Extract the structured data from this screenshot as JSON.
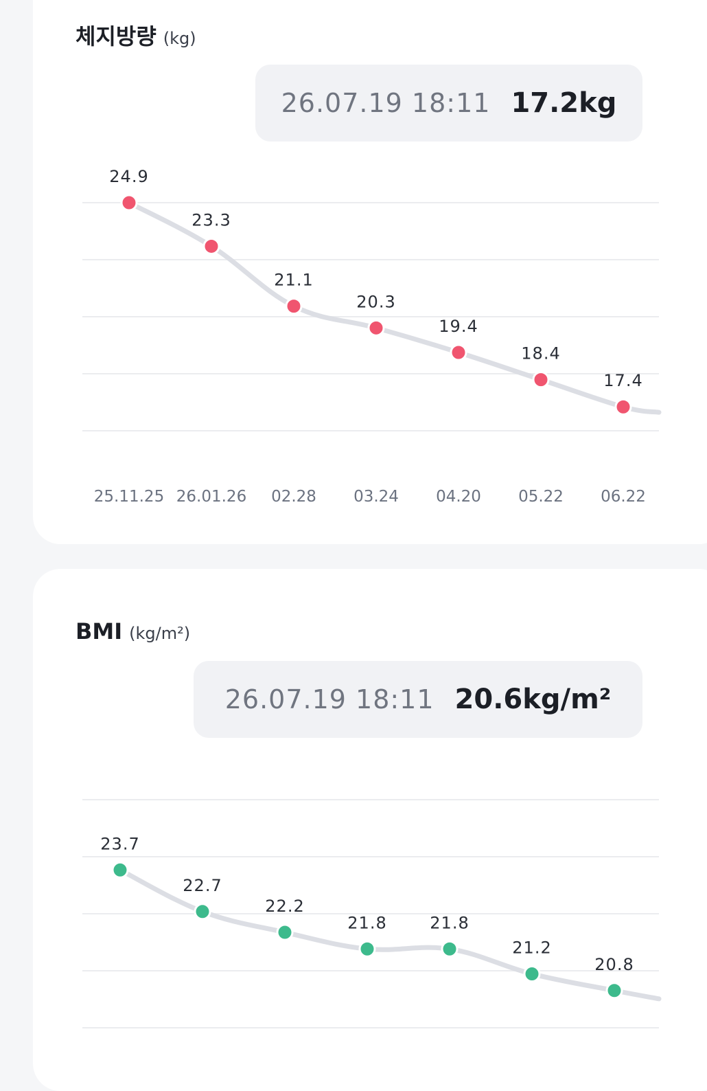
{
  "fat_card": {
    "title": "체지방량",
    "unit": "(kg)",
    "tooltip_time": "26.07.19 18:11",
    "tooltip_value": "17.2kg"
  },
  "bmi_card": {
    "title": "BMI",
    "unit": "(kg/m²)",
    "tooltip_time": "26.07.19 18:11",
    "tooltip_value": "20.6kg/m²"
  },
  "colors": {
    "fat_marker": "#f0556f",
    "bmi_marker": "#3dba8c",
    "line": "#dcdee4",
    "grid": "#ebecef",
    "axis_label": "#6b7280"
  },
  "chart_data": [
    {
      "type": "line",
      "categories": [
        "25.11.25",
        "26.01.26",
        "02.28",
        "03.24",
        "04.20",
        "05.22",
        "06.22"
      ],
      "series": [
        {
          "values": [
            24.9,
            23.3,
            21.1,
            20.3,
            19.4,
            18.4,
            17.4
          ]
        }
      ],
      "value_labels": [
        "24.9",
        "23.3",
        "21.1",
        "20.3",
        "19.4",
        "18.4",
        "17.4"
      ],
      "trailing_value": 17.2,
      "ylim": [
        16.8,
        24.8
      ],
      "grid": true
    },
    {
      "type": "line",
      "series": [
        {
          "values": [
            23.7,
            22.7,
            22.2,
            21.8,
            21.8,
            21.2,
            20.8
          ]
        }
      ],
      "value_labels": [
        "23.7",
        "22.7",
        "22.2",
        "21.8",
        "21.8",
        "21.2",
        "20.8"
      ],
      "trailing_value": 20.6,
      "ylim": [
        20.3,
        24.3
      ],
      "grid": true
    }
  ]
}
